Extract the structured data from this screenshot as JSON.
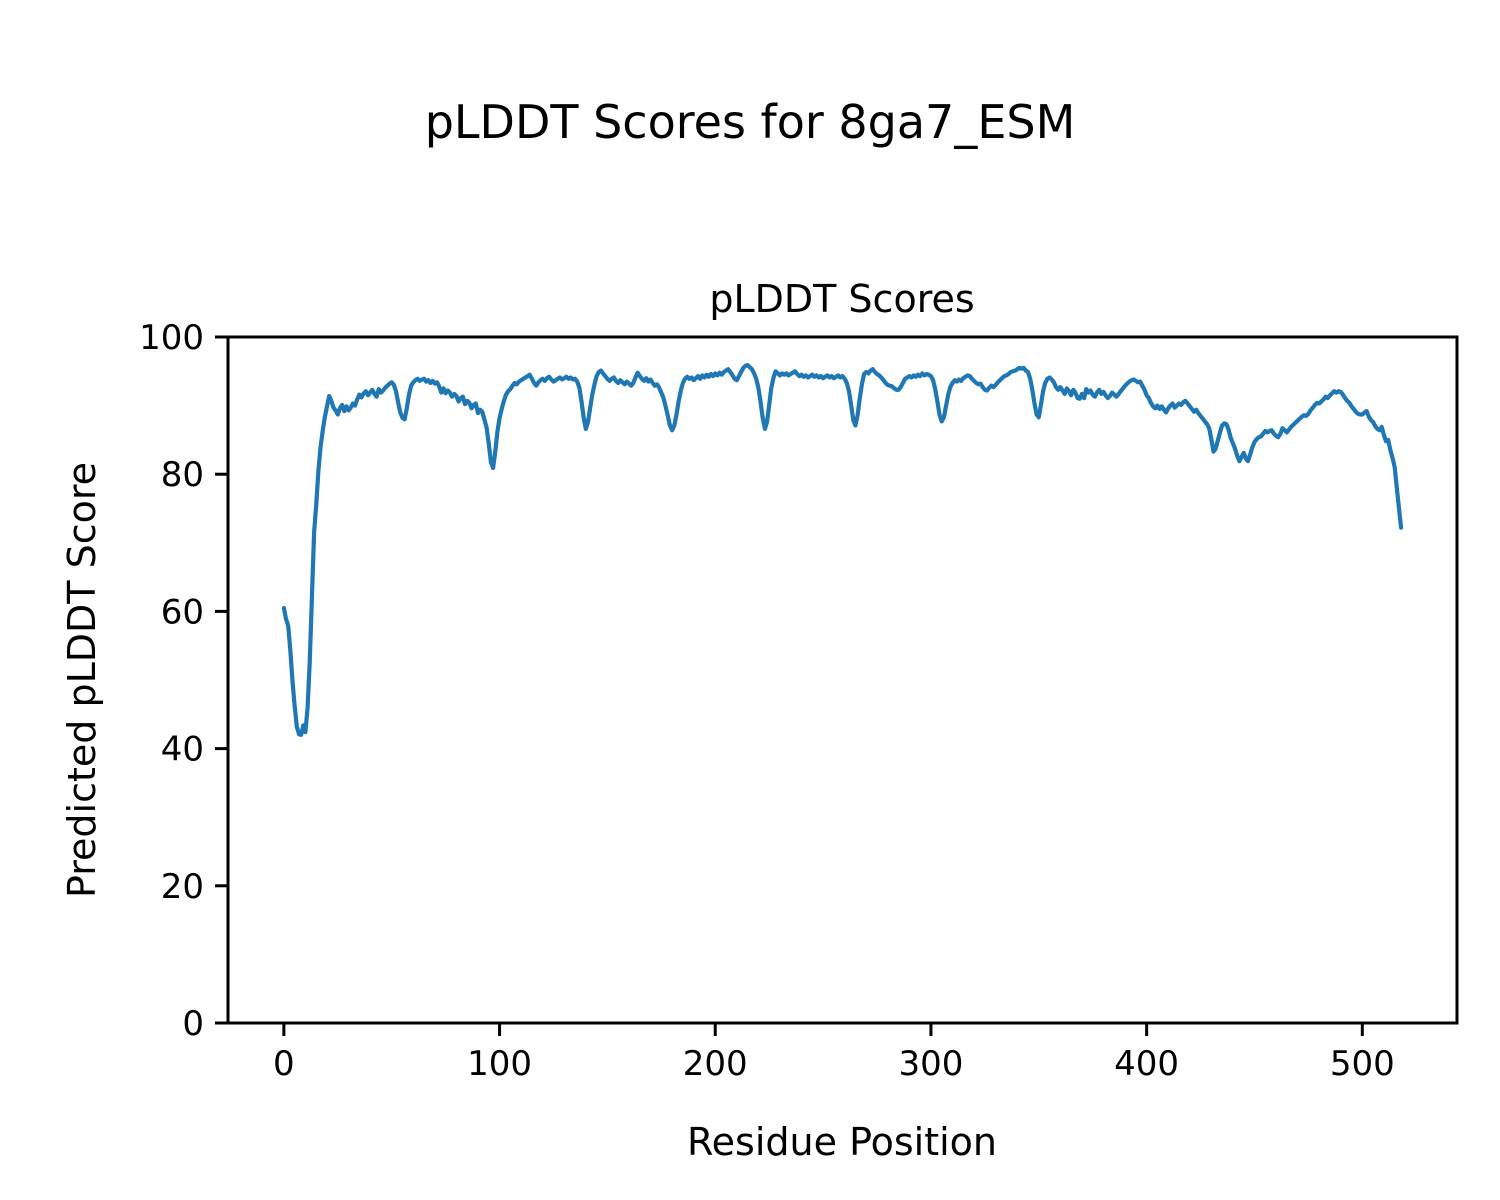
{
  "figure": {
    "suptitle": "pLDDT Scores for 8ga7_ESM",
    "background_color": "#ffffff",
    "axes_edge_color": "#000000"
  },
  "chart_data": {
    "type": "line",
    "title": "pLDDT Scores",
    "xlabel": "Residue Position",
    "ylabel": "Predicted pLDDT Score",
    "xlim": [
      -25.9,
      543.9
    ],
    "ylim": [
      0,
      100
    ],
    "xticks": [
      0,
      100,
      200,
      300,
      400,
      500
    ],
    "yticks": [
      0,
      20,
      40,
      60,
      80,
      100
    ],
    "grid": false,
    "legend": null,
    "series": [
      {
        "name": "pLDDT",
        "color": "#1f77b4",
        "x_start": 0,
        "x_step": 1,
        "values": [
          60.5,
          58.9,
          57.9,
          54.4,
          49.8,
          46.3,
          43.2,
          42.1,
          42.0,
          43.4,
          42.4,
          46.0,
          52.5,
          62.0,
          71.5,
          75.5,
          80.5,
          83.9,
          86.3,
          88.3,
          89.9,
          91.4,
          90.7,
          89.7,
          89.3,
          88.7,
          89.6,
          90.1,
          89.2,
          89.9,
          89.3,
          89.7,
          90.3,
          90.0,
          90.9,
          91.6,
          91.2,
          91.8,
          92.1,
          91.5,
          91.9,
          92.3,
          91.7,
          91.3,
          92.4,
          91.9,
          92.2,
          92.6,
          92.9,
          93.2,
          93.4,
          93.0,
          92.1,
          90.4,
          89.0,
          88.2,
          88.0,
          89.6,
          91.6,
          92.9,
          93.4,
          93.7,
          93.9,
          93.6,
          93.8,
          93.9,
          93.5,
          93.7,
          93.3,
          93.6,
          93.2,
          93.4,
          92.8,
          91.9,
          92.5,
          91.8,
          92.2,
          91.9,
          91.3,
          91.7,
          91.4,
          90.6,
          91.1,
          91.3,
          90.2,
          90.7,
          90.4,
          89.6,
          90.1,
          90.3,
          88.9,
          89.4,
          89.1,
          87.9,
          86.8,
          84.4,
          81.8,
          80.9,
          83.2,
          86.2,
          88.2,
          89.5,
          90.7,
          91.6,
          92.1,
          92.4,
          92.9,
          93.3,
          93.1,
          93.5,
          93.7,
          93.9,
          94.1,
          94.3,
          94.5,
          93.9,
          93.3,
          92.9,
          93.4,
          93.7,
          93.9,
          93.6,
          94.0,
          94.2,
          93.8,
          93.5,
          93.7,
          93.9,
          94.1,
          93.8,
          94.0,
          94.2,
          93.9,
          94.1,
          93.8,
          93.9,
          93.5,
          92.6,
          90.6,
          88.2,
          86.6,
          87.6,
          89.6,
          91.6,
          93.1,
          94.3,
          94.9,
          95.1,
          94.7,
          94.3,
          93.9,
          93.6,
          93.9,
          94.1,
          93.6,
          93.3,
          93.7,
          93.4,
          93.1,
          93.5,
          93.2,
          92.9,
          93.3,
          94.1,
          94.8,
          94.3,
          93.9,
          93.6,
          94.0,
          93.5,
          93.8,
          93.3,
          92.9,
          93.1,
          92.6,
          91.9,
          91.1,
          89.9,
          88.5,
          87.1,
          86.4,
          87.1,
          88.6,
          90.6,
          92.1,
          93.3,
          93.9,
          94.2,
          93.9,
          94.1,
          93.7,
          94.0,
          94.3,
          93.9,
          94.4,
          94.1,
          94.5,
          94.2,
          94.6,
          94.3,
          94.7,
          94.4,
          94.8,
          94.5,
          94.9,
          95.1,
          95.3,
          94.9,
          94.4,
          93.9,
          93.7,
          94.3,
          94.9,
          95.5,
          95.8,
          95.9,
          95.6,
          95.3,
          94.7,
          93.9,
          92.6,
          90.6,
          88.2,
          86.6,
          87.6,
          90.1,
          92.6,
          94.1,
          95.0,
          94.7,
          94.4,
          94.7,
          94.5,
          94.7,
          94.4,
          94.6,
          94.8,
          95.0,
          94.6,
          94.3,
          94.5,
          94.2,
          94.4,
          94.1,
          94.3,
          94.5,
          94.2,
          94.4,
          94.1,
          94.3,
          94.0,
          94.2,
          94.4,
          94.1,
          94.3,
          94.0,
          94.2,
          94.4,
          94.1,
          94.3,
          93.9,
          93.3,
          92.1,
          90.1,
          87.9,
          87.1,
          88.6,
          91.1,
          93.1,
          94.6,
          94.9,
          94.7,
          95.1,
          95.3,
          94.9,
          94.6,
          94.4,
          94.1,
          93.7,
          93.3,
          93.0,
          92.9,
          92.8,
          92.5,
          92.3,
          92.3,
          92.7,
          93.3,
          93.9,
          94.1,
          94.3,
          94.1,
          94.4,
          94.2,
          94.5,
          94.3,
          94.7,
          94.4,
          94.6,
          94.5,
          94.3,
          93.7,
          92.4,
          90.6,
          88.6,
          87.7,
          88.3,
          89.9,
          91.6,
          92.7,
          93.3,
          93.7,
          93.5,
          93.8,
          93.6,
          94.0,
          94.2,
          94.4,
          94.3,
          93.9,
          93.6,
          93.3,
          93.1,
          93.2,
          92.7,
          92.3,
          92.2,
          92.6,
          92.9,
          92.7,
          93.0,
          93.4,
          93.7,
          94.0,
          94.3,
          94.4,
          94.6,
          94.9,
          95.0,
          95.1,
          95.3,
          95.5,
          95.4,
          95.5,
          95.1,
          94.9,
          93.9,
          92.3,
          90.3,
          88.7,
          88.3,
          90.1,
          92.1,
          93.3,
          93.9,
          94.1,
          93.8,
          93.4,
          92.7,
          92.3,
          92.7,
          92.2,
          91.7,
          92.5,
          92.1,
          91.5,
          92.3,
          91.9,
          91.1,
          91.0,
          91.7,
          91.1,
          92.4,
          91.9,
          92.2,
          91.6,
          91.3,
          91.9,
          92.3,
          91.7,
          92.0,
          91.5,
          91.1,
          91.4,
          91.9,
          91.6,
          91.3,
          91.7,
          92.1,
          92.5,
          92.9,
          93.2,
          93.5,
          93.7,
          93.8,
          93.6,
          93.4,
          93.5,
          92.9,
          92.3,
          91.5,
          91.1,
          90.4,
          89.9,
          89.6,
          90.0,
          89.5,
          89.9,
          89.4,
          89.0,
          89.6,
          90.0,
          90.3,
          89.7,
          90.0,
          90.3,
          90.1,
          90.5,
          90.7,
          90.3,
          89.9,
          89.5,
          89.1,
          89.4,
          88.9,
          88.5,
          88.1,
          87.7,
          87.3,
          86.7,
          85.1,
          83.3,
          83.7,
          84.9,
          86.1,
          87.1,
          87.4,
          87.3,
          86.5,
          85.3,
          84.5,
          83.7,
          82.7,
          81.9,
          82.5,
          83.1,
          82.3,
          81.9,
          82.9,
          83.9,
          84.7,
          85.1,
          85.4,
          85.5,
          85.9,
          86.3,
          86.1,
          86.3,
          86.4,
          85.9,
          85.6,
          85.4,
          85.9,
          86.7,
          86.4,
          86.1,
          86.5,
          86.9,
          87.2,
          87.5,
          87.8,
          88.1,
          88.4,
          88.6,
          88.5,
          88.8,
          89.3,
          89.7,
          90.1,
          90.4,
          90.3,
          90.6,
          90.9,
          91.3,
          91.1,
          91.5,
          91.8,
          92.1,
          91.9,
          92.1,
          92.0,
          91.6,
          91.1,
          90.7,
          90.4,
          89.9,
          89.5,
          89.1,
          88.8,
          88.7,
          88.7,
          89.0,
          89.2,
          88.4,
          87.9,
          87.6,
          87.0,
          86.6,
          86.4,
          86.9,
          85.7,
          84.8,
          85.0,
          83.5,
          82.4,
          81.0,
          78.0,
          75.0,
          72.2
        ]
      }
    ]
  }
}
